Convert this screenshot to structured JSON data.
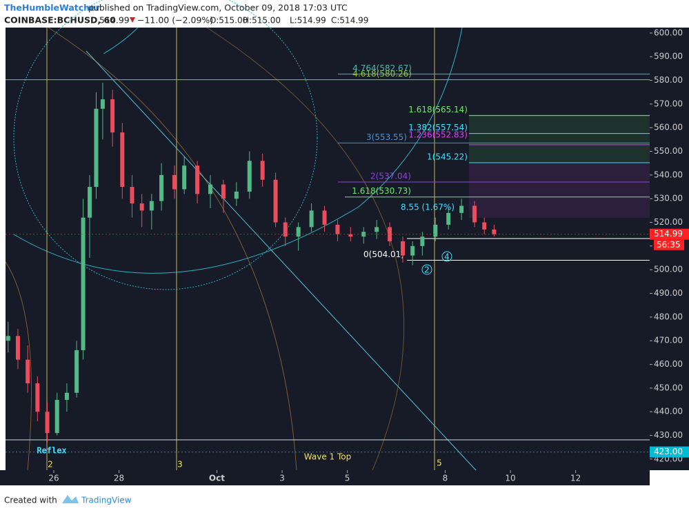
{
  "chart_data": {
    "type": "candlestick",
    "author": "TheHumbleWatcher",
    "title": "published on TradingView.com, October 09, 2018 17:03 UTC",
    "symbol": "COINBASE:BCHUSD, 60",
    "last": "514.99",
    "change": "−11.00 (−2.09%)",
    "ohlc_labels": [
      "O:515.00",
      "H:515.00",
      "L:514.99",
      "C:514.99"
    ],
    "footer": "Created with",
    "brand": "TradingView",
    "x": [
      24.6,
      24.9,
      25.2,
      25.5,
      25.8,
      26.1,
      26.4,
      26.7,
      26.9,
      27.1,
      27.3,
      27.5,
      27.8,
      28.1,
      28.4,
      28.7,
      29.0,
      29.3,
      29.7,
      30.0,
      30.4,
      30.8,
      31.2,
      31.6,
      32.0,
      32.4,
      32.8,
      33.1,
      33.5,
      33.9,
      34.3,
      34.7,
      35.1,
      35.5,
      35.9,
      36.3,
      36.7,
      37.0,
      37.3,
      37.7,
      38.1,
      38.5,
      38.9,
      39.2,
      39.5
    ],
    "open": [
      470,
      472,
      462,
      452,
      440,
      431,
      445,
      448,
      466,
      522,
      535,
      568,
      572,
      558,
      535,
      528,
      525,
      529,
      540,
      534,
      544,
      532,
      536,
      530,
      533,
      546,
      538,
      520,
      514,
      518,
      525,
      519,
      515,
      514,
      516,
      518,
      512,
      506,
      510,
      514,
      519,
      524,
      527,
      520,
      517
    ],
    "high": [
      478,
      475,
      468,
      455,
      444,
      448,
      452,
      470,
      530,
      540,
      575,
      579,
      576,
      562,
      540,
      532,
      532,
      545,
      544,
      548,
      546,
      540,
      538,
      537,
      550,
      549,
      541,
      522,
      520,
      528,
      527,
      521,
      518,
      518,
      521,
      520,
      514,
      512,
      516,
      522,
      526,
      530,
      529,
      522,
      519
    ],
    "low": [
      465,
      458,
      448,
      436,
      427,
      430,
      440,
      446,
      462,
      505,
      530,
      555,
      552,
      530,
      522,
      518,
      517,
      525,
      530,
      532,
      528,
      526,
      524,
      527,
      530,
      535,
      518,
      510,
      508,
      516,
      516,
      512,
      512,
      511,
      513,
      510,
      503,
      502,
      506,
      512,
      517,
      521,
      518,
      515,
      514
    ],
    "close": [
      472,
      462,
      452,
      440,
      431,
      445,
      448,
      466,
      522,
      535,
      568,
      572,
      558,
      535,
      528,
      525,
      529,
      540,
      534,
      544,
      532,
      536,
      530,
      533,
      546,
      538,
      520,
      514,
      518,
      525,
      519,
      515,
      514,
      516,
      518,
      512,
      506,
      510,
      514,
      519,
      524,
      527,
      520,
      517,
      515
    ],
    "up_color": "#53b987",
    "down_color": "#eb4d5c",
    "xlim": [
      24.52,
      44.27
    ],
    "xticks": [
      {
        "value": 26,
        "label": "26"
      },
      {
        "value": 28,
        "label": "28"
      },
      {
        "value": 31,
        "label": "Oct"
      },
      {
        "value": 33,
        "label": "3"
      },
      {
        "value": 35,
        "label": "5"
      },
      {
        "value": 38,
        "label": "8"
      },
      {
        "value": 40,
        "label": "10"
      },
      {
        "value": 42,
        "label": "12"
      }
    ],
    "ylim": [
      415.3,
      602.3
    ],
    "yticks": [
      {
        "value": 420,
        "label": "420.00"
      },
      {
        "value": 430,
        "label": "430.00"
      },
      {
        "value": 440,
        "label": "440.00"
      },
      {
        "value": 450,
        "label": "450.00"
      },
      {
        "value": 460,
        "label": "460.00"
      },
      {
        "value": 470,
        "label": "470.00"
      },
      {
        "value": 480,
        "label": "480.00"
      },
      {
        "value": 490,
        "label": "490.00"
      },
      {
        "value": 500,
        "label": "500.00"
      },
      {
        "value": 510,
        "label": "510.00"
      },
      {
        "value": 520,
        "label": "520.00"
      },
      {
        "value": 530,
        "label": "530.00"
      },
      {
        "value": 540,
        "label": "540.00"
      },
      {
        "value": 550,
        "label": "550.00"
      },
      {
        "value": 560,
        "label": "560.00"
      },
      {
        "value": 570,
        "label": "570.00"
      },
      {
        "value": 580,
        "label": "580.00"
      },
      {
        "value": 590,
        "label": "590.00"
      },
      {
        "value": 600,
        "label": "600.00"
      }
    ],
    "levels": [
      {
        "label": "4.764(582.67)",
        "value": 582.67,
        "color": "#4db6ac"
      },
      {
        "label": "4.618(580.26)",
        "value": 580.26,
        "color": "#8bc34a"
      },
      {
        "label": "1.618(565.14)",
        "value": 565.14,
        "color": "#6ee86e"
      },
      {
        "label": "1.382(557.54)",
        "value": 557.54,
        "color": "#40e0ff"
      },
      {
        "label": "3(553.55)",
        "value": 553.55,
        "color": "#4a8fd6"
      },
      {
        "label": "1.236(552.83)",
        "value": 552.83,
        "color": "#e040fb"
      },
      {
        "label": "1(545.22)",
        "value": 545.22,
        "color": "#40e0ff"
      },
      {
        "label": "2(537.04)",
        "value": 537.04,
        "color": "#8e44d6"
      },
      {
        "label": "1.618(530.73)",
        "value": 530.73,
        "color": "#6ee86e"
      },
      {
        "label": "0(504.01)",
        "value": 504.01,
        "color": "#ffffff"
      }
    ],
    "price_tags": [
      {
        "value": 514.99,
        "label": "514.99",
        "color": "#ff2222"
      },
      {
        "value": 423,
        "label": "423.00",
        "color": "#00bcd4"
      }
    ],
    "countdown": "56:35",
    "annotations": [
      "Reflex",
      "Wave 1 Top",
      "2",
      "3",
      "5",
      "8.55 (1.67%)"
    ],
    "wave_circles": [
      "2",
      "4"
    ]
  }
}
